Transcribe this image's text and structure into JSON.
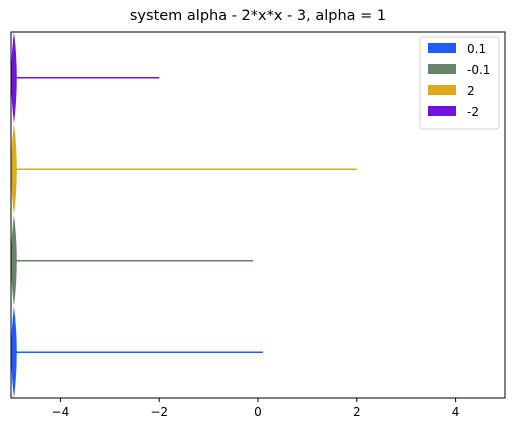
{
  "chart_data": {
    "type": "line",
    "title": "system alpha - 2*x*x - 3, alpha = 1",
    "xlabel": "",
    "ylabel": "",
    "xlim": [
      -5,
      5
    ],
    "ylim": [
      -0.5,
      3.5
    ],
    "x_ticks": [
      -4,
      -2,
      0,
      2,
      4
    ],
    "x_tick_labels": [
      "−4",
      "−2",
      "0",
      "2",
      "4"
    ],
    "y_ticks_visible": false,
    "grid": false,
    "legend_position": "top-right",
    "legend_marker": "patch",
    "series": [
      {
        "name": "0.1",
        "level": 0,
        "color": "#1f5cff",
        "line_x": [
          -4.94,
          0.1
        ],
        "spindle_x": -4.94,
        "spindle_halfheight": 0.5
      },
      {
        "name": "-0.1",
        "level": 1,
        "color": "#668467",
        "line_x": [
          -4.94,
          -0.1
        ],
        "spindle_x": -4.94,
        "spindle_halfheight": 0.5
      },
      {
        "name": "2",
        "level": 2,
        "color": "#e0a91c",
        "line_x": [
          -4.94,
          2.0
        ],
        "spindle_x": -4.94,
        "spindle_halfheight": 0.5
      },
      {
        "name": "-2",
        "level": 3,
        "color": "#7413e0",
        "line_x": [
          -4.94,
          -2.0
        ],
        "spindle_x": -4.94,
        "spindle_halfheight": 0.5
      }
    ]
  }
}
